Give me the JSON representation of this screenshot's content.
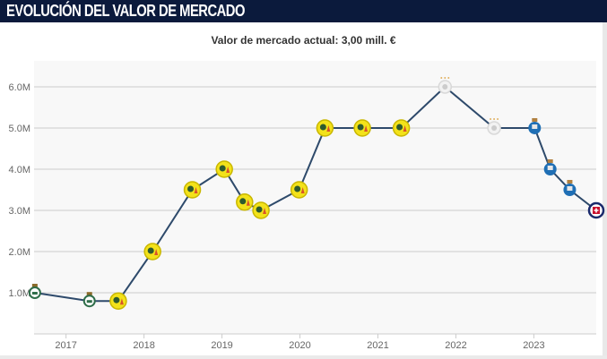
{
  "header": {
    "title": "EVOLUCIÓN DEL VALOR DE MERCADO"
  },
  "subtitle": "Valor de mercado actual: 3,00 mill. €",
  "colors": {
    "header_bg": "#0b1a3c",
    "line": "#2e4a6b",
    "grid": "#cccccc",
    "plot_bg": "#f8f8f8",
    "santos": "#2f6e4a",
    "america": "#f3e21a",
    "ajax": "#d8d8d8",
    "porto": "#1f6fb5",
    "cruz_azul": "#1a2a6c"
  },
  "chart_data": {
    "type": "line",
    "title": "EVOLUCIÓN DEL VALOR DE MERCADO",
    "subtitle": "Valor de mercado actual: 3,00 mill. €",
    "xlabel": "",
    "ylabel": "",
    "xlim": [
      2016.59,
      2023.8
    ],
    "ylim": [
      0,
      6.5
    ],
    "grid": true,
    "legend": "none",
    "x_ticks": [
      "2017",
      "2018",
      "2019",
      "2020",
      "2021",
      "2022",
      "2023"
    ],
    "y_ticks": [
      "1.0M",
      "2.0M",
      "3.0M",
      "4.0M",
      "5.0M",
      "6.0M"
    ],
    "y_tick_values": [
      1,
      2,
      3,
      4,
      5,
      6
    ],
    "unit": "M €",
    "series": [
      {
        "name": "Valor de mercado",
        "points": [
          {
            "x": 2016.6,
            "y": 1.0,
            "club": "santos"
          },
          {
            "x": 2017.3,
            "y": 0.8,
            "club": "santos"
          },
          {
            "x": 2017.67,
            "y": 0.8,
            "club": "america"
          },
          {
            "x": 2018.11,
            "y": 2.0,
            "club": "america"
          },
          {
            "x": 2018.62,
            "y": 3.5,
            "club": "america"
          },
          {
            "x": 2019.03,
            "y": 4.0,
            "club": "america"
          },
          {
            "x": 2019.29,
            "y": 3.2,
            "club": "america"
          },
          {
            "x": 2019.5,
            "y": 3.0,
            "club": "america"
          },
          {
            "x": 2019.99,
            "y": 3.5,
            "club": "america"
          },
          {
            "x": 2020.32,
            "y": 5.0,
            "club": "america"
          },
          {
            "x": 2020.8,
            "y": 5.0,
            "club": "america"
          },
          {
            "x": 2021.3,
            "y": 5.0,
            "club": "america"
          },
          {
            "x": 2021.86,
            "y": 6.0,
            "club": "ajax"
          },
          {
            "x": 2022.49,
            "y": 5.0,
            "club": "ajax"
          },
          {
            "x": 2023.01,
            "y": 5.0,
            "club": "porto"
          },
          {
            "x": 2023.21,
            "y": 4.0,
            "club": "porto"
          },
          {
            "x": 2023.46,
            "y": 3.5,
            "club": "porto"
          },
          {
            "x": 2023.8,
            "y": 3.0,
            "club": "cruz_azul"
          }
        ]
      }
    ]
  }
}
